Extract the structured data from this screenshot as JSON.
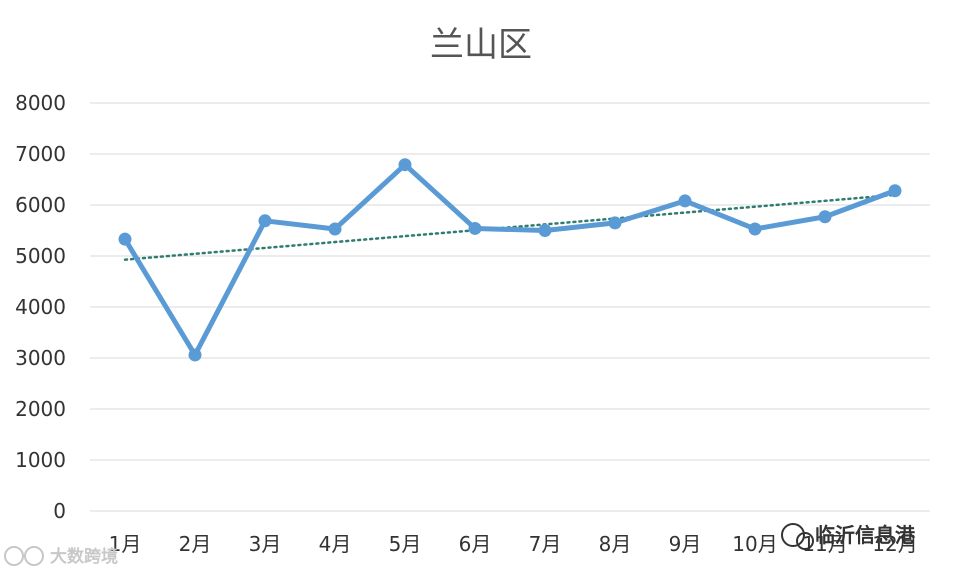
{
  "chart_data": {
    "type": "line",
    "title": "兰山区",
    "categories": [
      "1月",
      "2月",
      "3月",
      "4月",
      "5月",
      "6月",
      "7月",
      "8月",
      "9月",
      "10月",
      "11月",
      "12月"
    ],
    "values": [
      5330,
      3060,
      5690,
      5530,
      6790,
      5540,
      5500,
      5650,
      6080,
      5530,
      5770,
      6280
    ],
    "trendline": {
      "type": "linear",
      "style": "dotted",
      "color": "#2e7d6f"
    },
    "series_color": "#5b9bd5",
    "ylim": [
      0,
      8000
    ],
    "yticks": [
      "0",
      "1000",
      "2000",
      "3000",
      "4000",
      "5000",
      "6000",
      "7000",
      "8000"
    ],
    "xlabel": "",
    "ylabel": "",
    "grid": true,
    "legend": "none"
  },
  "watermarks": {
    "bottom_right": "临沂信息港",
    "bottom_left": "大数跨境"
  }
}
